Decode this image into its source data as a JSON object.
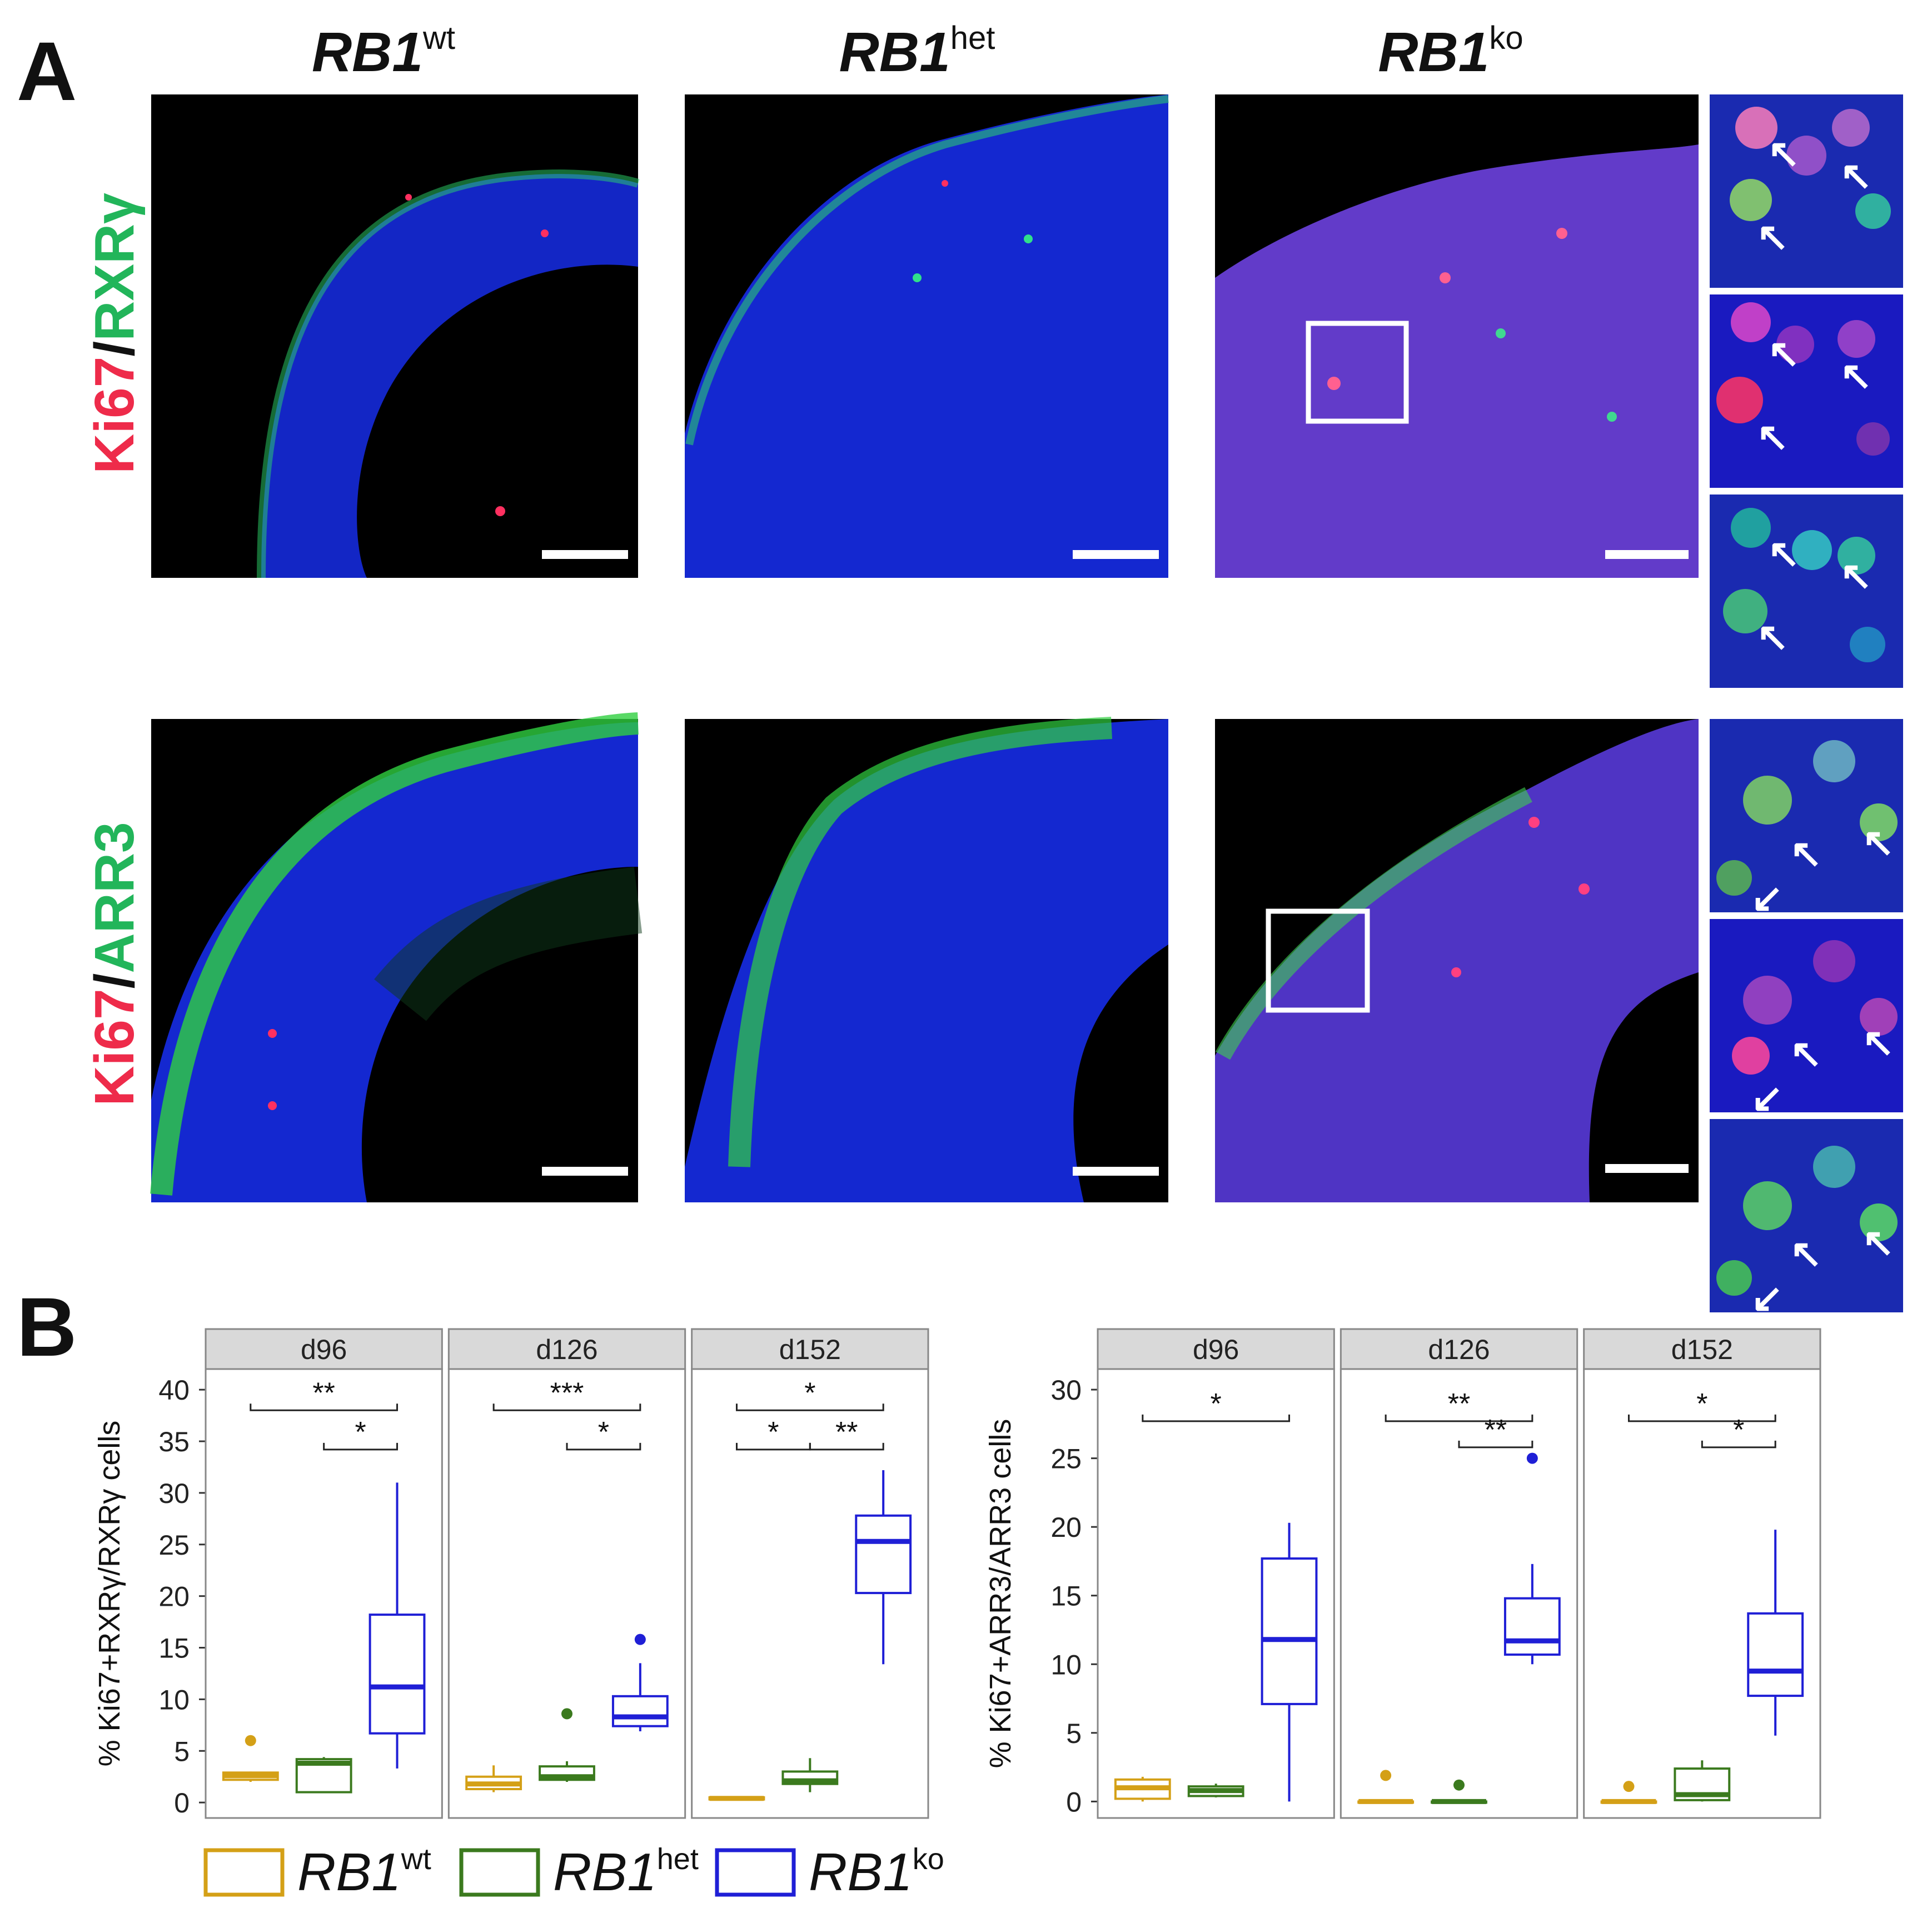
{
  "panel_a": {
    "label": "A",
    "columns": [
      {
        "base": "RB1",
        "sup": "wt"
      },
      {
        "base": "RB1",
        "sup": "het"
      },
      {
        "base": "RB1",
        "sup": "ko"
      }
    ],
    "rows": [
      {
        "marker_red": "Ki67",
        "sep": "/",
        "marker_green": "RXRγ"
      },
      {
        "marker_red": "Ki67",
        "sep": "/",
        "marker_green": "ARR3"
      }
    ]
  },
  "panel_b": {
    "label": "B"
  },
  "legend": [
    {
      "base": "RB1",
      "sup": "wt",
      "color": "#d4a017"
    },
    {
      "base": "RB1",
      "sup": "het",
      "color": "#3b7a1e"
    },
    {
      "base": "RB1",
      "sup": "ko",
      "color": "#1f1fd6"
    }
  ],
  "colors": {
    "wt": "#d4a017",
    "het": "#3b7a1e",
    "ko": "#1f1fd6",
    "strip": "#d9d9d9"
  },
  "chart_data": [
    {
      "type": "box",
      "ylabel": "% Ki67+RXRγ/RXRγ cells",
      "ylim": [
        -1.5,
        42
      ],
      "yticks": [
        0,
        5,
        10,
        15,
        20,
        25,
        30,
        35,
        40
      ],
      "groups": [
        "wt",
        "het",
        "ko"
      ],
      "facets": [
        {
          "label": "d96",
          "boxes": [
            {
              "group": "wt",
              "min": 2.0,
              "q1": 2.2,
              "median": 2.6,
              "q3": 2.9,
              "max": 3.0,
              "outliers": [
                6.0
              ]
            },
            {
              "group": "het",
              "min": 1.0,
              "q1": 1.0,
              "median": 3.8,
              "q3": 4.2,
              "max": 4.4,
              "outliers": []
            },
            {
              "group": "ko",
              "min": 3.3,
              "q1": 6.7,
              "median": 11.2,
              "q3": 18.2,
              "max": 31.0,
              "outliers": []
            }
          ],
          "sig": [
            {
              "from": 0,
              "to": 2,
              "label": "**",
              "y": 38.0
            },
            {
              "from": 1,
              "to": 2,
              "label": "*",
              "y": 34.2
            }
          ]
        },
        {
          "label": "d126",
          "boxes": [
            {
              "group": "wt",
              "min": 1.0,
              "q1": 1.3,
              "median": 1.8,
              "q3": 2.5,
              "max": 3.6,
              "outliers": []
            },
            {
              "group": "het",
              "min": 2.0,
              "q1": 2.2,
              "median": 2.5,
              "q3": 3.5,
              "max": 4.0,
              "outliers": [
                8.6
              ]
            },
            {
              "group": "ko",
              "min": 6.9,
              "q1": 7.4,
              "median": 8.3,
              "q3": 10.3,
              "max": 13.5,
              "outliers": [
                15.8
              ]
            }
          ],
          "sig": [
            {
              "from": 0,
              "to": 2,
              "label": "***",
              "y": 38.0
            },
            {
              "from": 1,
              "to": 2,
              "label": "*",
              "y": 34.2
            }
          ]
        },
        {
          "label": "d152",
          "boxes": [
            {
              "group": "wt",
              "min": 0.2,
              "q1": 0.3,
              "median": 0.4,
              "q3": 0.5,
              "max": 0.6,
              "outliers": []
            },
            {
              "group": "het",
              "min": 1.0,
              "q1": 1.8,
              "median": 2.1,
              "q3": 3.0,
              "max": 4.3,
              "outliers": []
            },
            {
              "group": "ko",
              "min": 13.4,
              "q1": 20.3,
              "median": 25.3,
              "q3": 27.8,
              "max": 32.2,
              "outliers": []
            }
          ],
          "sig": [
            {
              "from": 0,
              "to": 2,
              "label": "*",
              "y": 38.0
            },
            {
              "from": 0,
              "to": 1,
              "label": "*",
              "y": 34.2
            },
            {
              "from": 1,
              "to": 2,
              "label": "**",
              "y": 34.2
            }
          ]
        }
      ]
    },
    {
      "type": "box",
      "ylabel": "% Ki67+ARR3/ARR3 cells",
      "ylim": [
        -1.2,
        31.5
      ],
      "yticks": [
        0,
        5,
        10,
        15,
        20,
        25,
        30
      ],
      "groups": [
        "wt",
        "het",
        "ko"
      ],
      "facets": [
        {
          "label": "d96",
          "boxes": [
            {
              "group": "wt",
              "min": 0.0,
              "q1": 0.2,
              "median": 1.0,
              "q3": 1.6,
              "max": 1.8,
              "outliers": []
            },
            {
              "group": "het",
              "min": 0.3,
              "q1": 0.4,
              "median": 0.8,
              "q3": 1.1,
              "max": 1.3,
              "outliers": []
            },
            {
              "group": "ko",
              "min": 0.0,
              "q1": 7.1,
              "median": 11.8,
              "q3": 17.7,
              "max": 20.3,
              "outliers": []
            }
          ],
          "sig": [
            {
              "from": 0,
              "to": 2,
              "label": "*",
              "y": 27.7
            }
          ]
        },
        {
          "label": "d126",
          "boxes": [
            {
              "group": "wt",
              "min": 0.0,
              "q1": 0.0,
              "median": 0.0,
              "q3": 0.0,
              "max": 0.0,
              "outliers": [
                1.9
              ]
            },
            {
              "group": "het",
              "min": 0.0,
              "q1": 0.0,
              "median": 0.0,
              "q3": 0.0,
              "max": 0.0,
              "outliers": [
                1.2
              ]
            },
            {
              "group": "ko",
              "min": 10.0,
              "q1": 10.7,
              "median": 11.7,
              "q3": 14.8,
              "max": 17.3,
              "outliers": [
                25.0
              ]
            }
          ],
          "sig": [
            {
              "from": 0,
              "to": 2,
              "label": "**",
              "y": 27.7
            },
            {
              "from": 1,
              "to": 2,
              "label": "**",
              "y": 25.8
            }
          ]
        },
        {
          "label": "d152",
          "boxes": [
            {
              "group": "wt",
              "min": 0.0,
              "q1": 0.0,
              "median": 0.0,
              "q3": 0.0,
              "max": 0.0,
              "outliers": [
                1.1
              ]
            },
            {
              "group": "het",
              "min": 0.0,
              "q1": 0.1,
              "median": 0.5,
              "q3": 2.4,
              "max": 3.0,
              "outliers": []
            },
            {
              "group": "ko",
              "min": 4.8,
              "q1": 7.7,
              "median": 9.5,
              "q3": 13.7,
              "max": 19.8,
              "outliers": []
            }
          ],
          "sig": [
            {
              "from": 0,
              "to": 2,
              "label": "*",
              "y": 27.7
            },
            {
              "from": 1,
              "to": 2,
              "label": "*",
              "y": 25.8
            }
          ]
        }
      ]
    }
  ]
}
